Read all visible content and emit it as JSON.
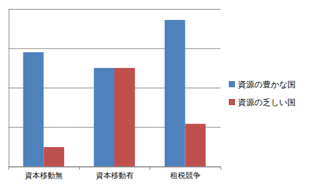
{
  "chart_data": {
    "type": "bar",
    "categories": [
      "資本移動無",
      "資本移動有",
      "租税競争"
    ],
    "series": [
      {
        "name": "資源の豊かな国",
        "color": "#4f81bd",
        "values": [
          2.9,
          2.5,
          3.72
        ]
      },
      {
        "name": "資源の乏しい国",
        "color": "#c0504d",
        "values": [
          0.49,
          2.5,
          1.08
        ]
      }
    ],
    "ylim": [
      0,
      4
    ],
    "yticks": [
      0,
      1,
      2,
      3,
      4
    ],
    "grid": true,
    "legend": "right",
    "tick_labels": "x"
  }
}
